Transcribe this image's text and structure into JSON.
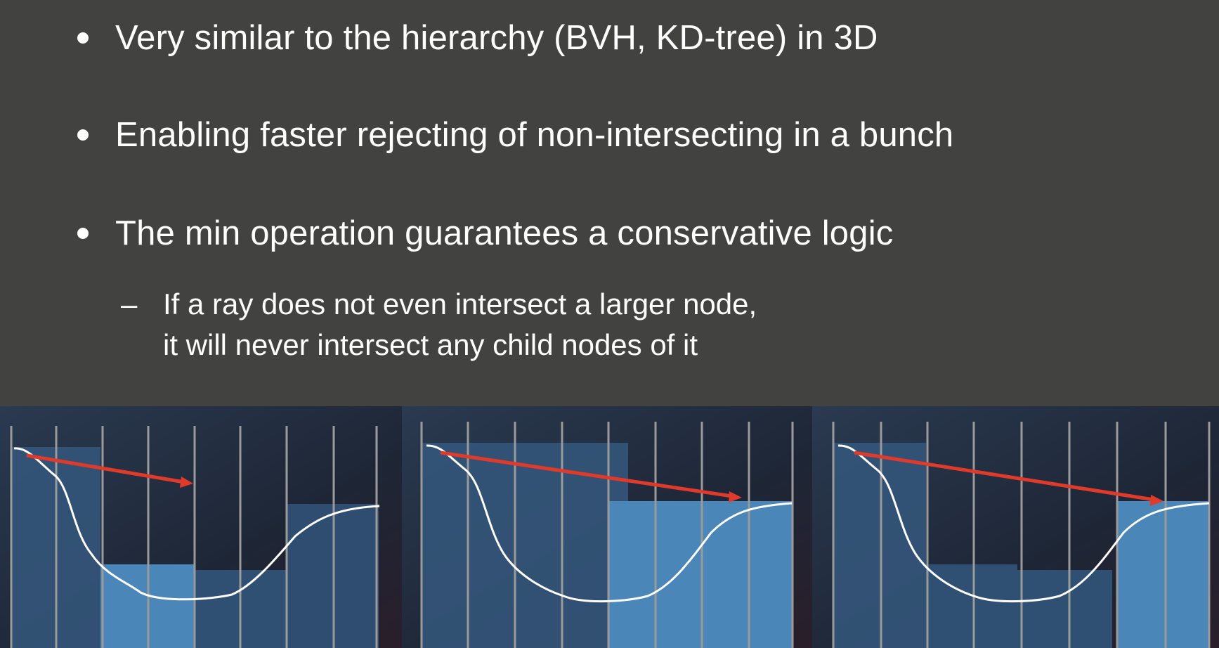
{
  "slide": {
    "bullets": [
      {
        "text": "Very similar to the hierarchy (BVH, KD-tree) in 3D"
      },
      {
        "text": "Enabling faster rejecting of non-intersecting in a bunch"
      },
      {
        "text": "The min operation guarantees a conservative logic"
      }
    ],
    "sub_bullet": {
      "marker": "–",
      "line1": "If a ray does not even intersect a larger node,",
      "line2": "it will never intersect any child nodes of it"
    }
  },
  "colors": {
    "background": "#424240",
    "panel_bg": "#1f2a3a",
    "node_fill": "#4a86b8",
    "ray": "#e03a2a",
    "grid_line": "#9a9a9a",
    "curve": "#ffffff"
  },
  "diagram": {
    "panels": [
      {
        "id": "panel-1",
        "ray_end_step": 4
      },
      {
        "id": "panel-2",
        "ray_end_step": 7
      },
      {
        "id": "panel-3",
        "ray_end_step": 7
      }
    ]
  }
}
